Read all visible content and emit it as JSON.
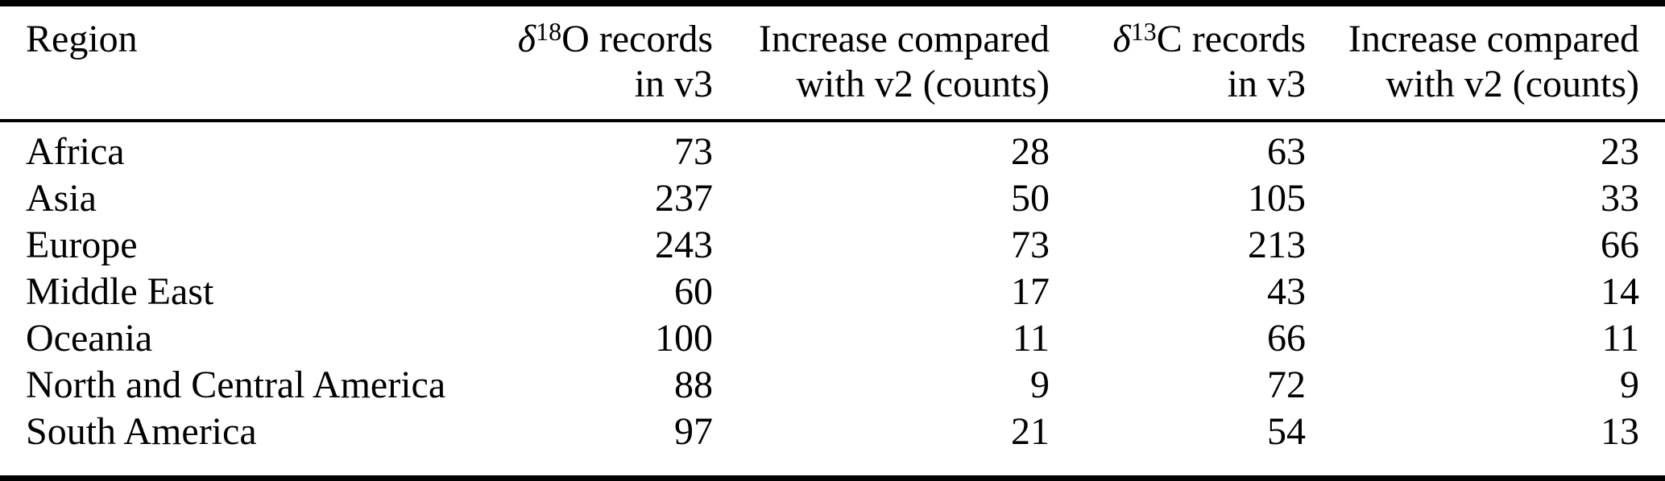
{
  "page": {
    "background": "#ffffff",
    "text_color": "#000000",
    "rule_color": "#000000"
  },
  "table": {
    "header": {
      "region": "Region",
      "d18o": {
        "symbol": "δ",
        "superscript": "18",
        "text": "O records",
        "line2": "in v3"
      },
      "increase_d18o": {
        "line1": "Increase compared",
        "line2": "with v2 (counts)"
      },
      "d13c": {
        "symbol": "δ",
        "superscript": "13",
        "text": "C records",
        "line2": "in v3"
      },
      "increase_d13c": {
        "line1": "Increase compared",
        "line2": "with v2 (counts)"
      }
    },
    "rows": [
      {
        "region": "Africa",
        "d18o_v3": 73,
        "d18o_increase": 28,
        "d13c_v3": 63,
        "d13c_increase": 23
      },
      {
        "region": "Asia",
        "d18o_v3": 237,
        "d18o_increase": 50,
        "d13c_v3": 105,
        "d13c_increase": 33
      },
      {
        "region": "Europe",
        "d18o_v3": 243,
        "d18o_increase": 73,
        "d13c_v3": 213,
        "d13c_increase": 66
      },
      {
        "region": "Middle East",
        "d18o_v3": 60,
        "d18o_increase": 17,
        "d13c_v3": 43,
        "d13c_increase": 14
      },
      {
        "region": "Oceania",
        "d18o_v3": 100,
        "d18o_increase": 11,
        "d13c_v3": 66,
        "d13c_increase": 11
      },
      {
        "region": "North and Central America",
        "d18o_v3": 88,
        "d18o_increase": 9,
        "d13c_v3": 72,
        "d13c_increase": 9
      },
      {
        "region": "South America",
        "d18o_v3": 97,
        "d18o_increase": 21,
        "d13c_v3": 54,
        "d13c_increase": 13
      }
    ]
  }
}
